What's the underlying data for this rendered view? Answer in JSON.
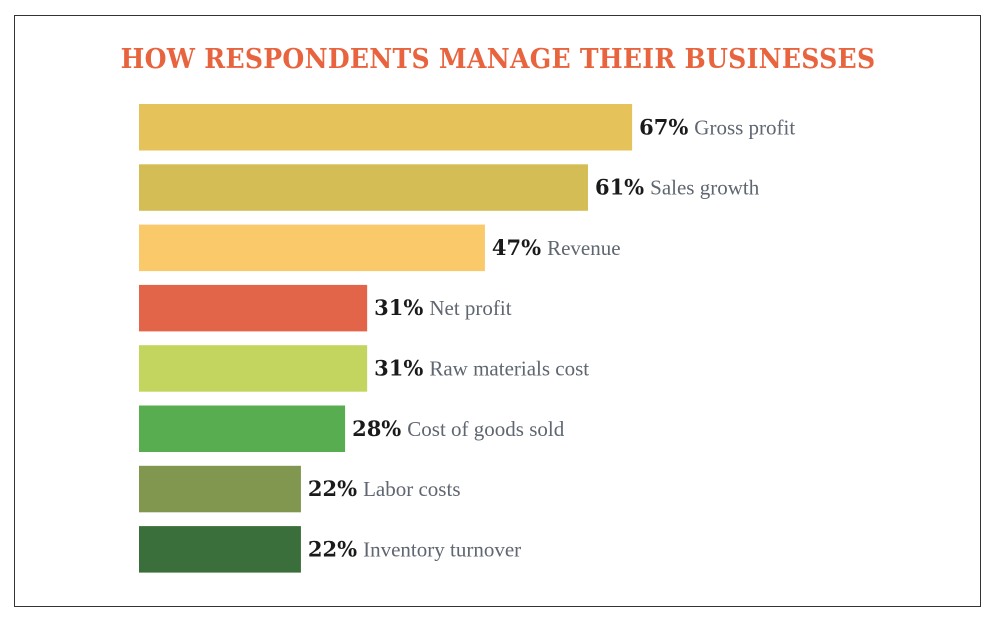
{
  "chart_data": {
    "type": "bar",
    "orientation": "horizontal",
    "title": "HOW RESPONDENTS MANAGE THEIR BUSINESSES",
    "categories": [
      "Gross profit",
      "Sales growth",
      "Revenue",
      "Net profit",
      "Raw materials cost",
      "Cost of goods sold",
      "Labor costs",
      "Inventory turnover"
    ],
    "values": [
      67,
      61,
      47,
      31,
      31,
      28,
      22,
      22
    ],
    "value_labels": [
      "67%",
      "61%",
      "47%",
      "31%",
      "31%",
      "28%",
      "22%",
      "22%"
    ],
    "colors": [
      "#E5C25A",
      "#D5BD55",
      "#F9C96A",
      "#E26549",
      "#C3D55E",
      "#58AD50",
      "#81964E",
      "#3A6E3A"
    ],
    "title_color": "#E8643F",
    "grid": false,
    "axes_visible": false
  }
}
